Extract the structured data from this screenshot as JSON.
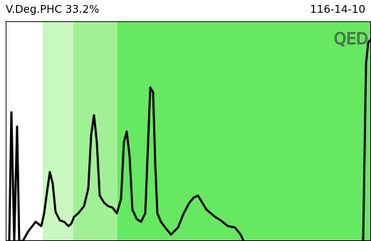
{
  "header": {
    "title": "V.Deg.PHC 33.2%",
    "code": "116-14-10"
  },
  "logo": "QED"
}
